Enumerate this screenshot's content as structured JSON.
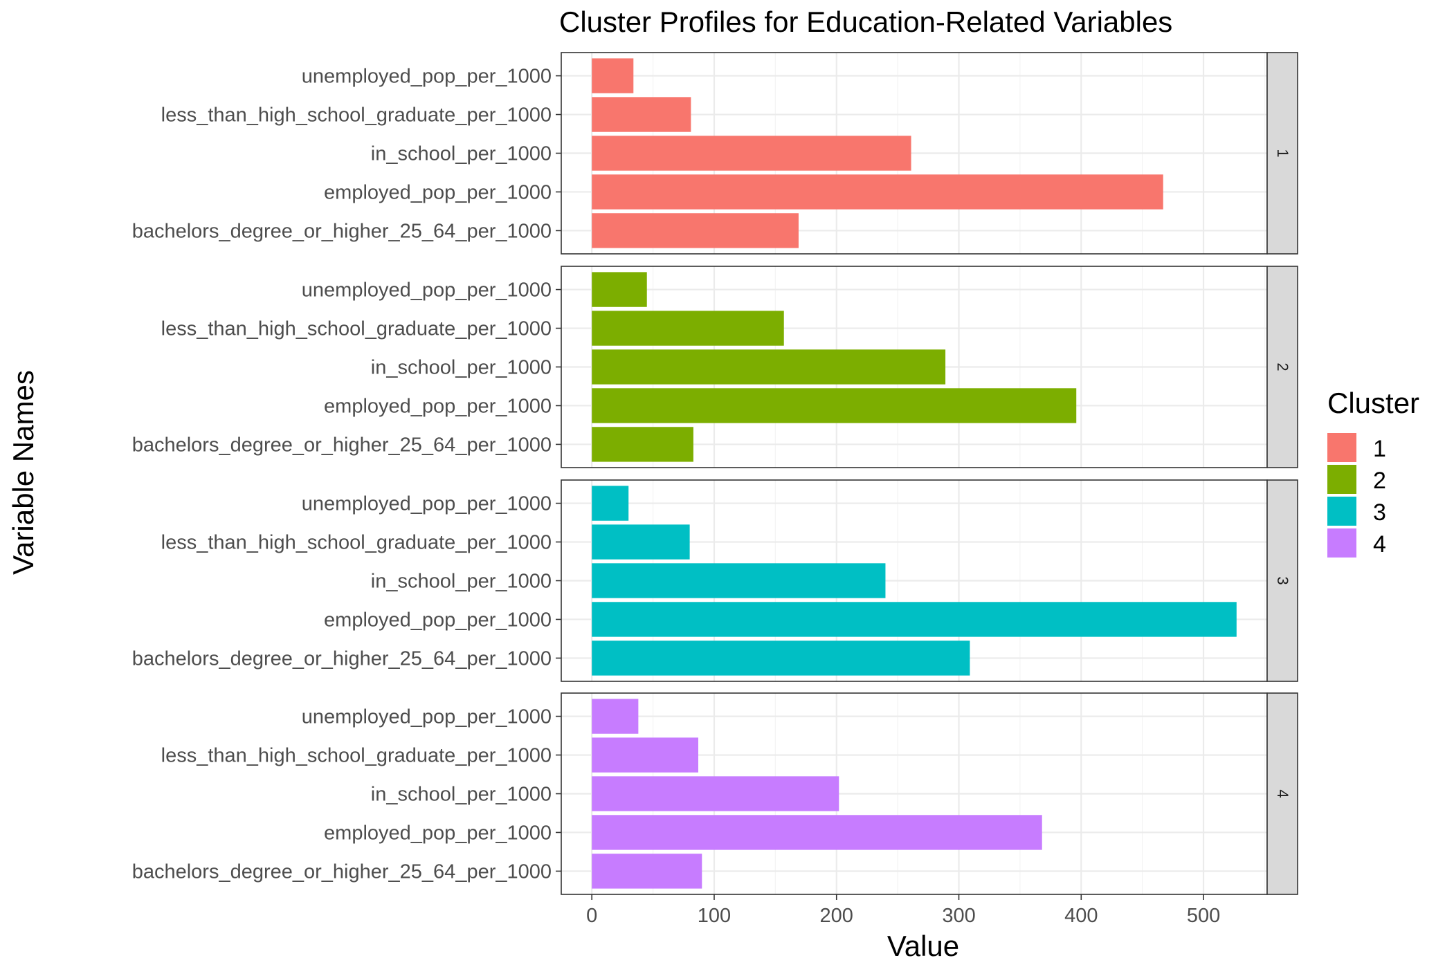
{
  "chart_data": {
    "type": "bar",
    "orientation": "horizontal",
    "facet": "rows",
    "title": "Cluster Profiles for Education-Related Variables",
    "xlabel": "Value",
    "ylabel": "Variable Names",
    "xlim": [
      -25,
      552
    ],
    "x_ticks": [
      0,
      100,
      200,
      300,
      400,
      500
    ],
    "grid": true,
    "legend": {
      "title": "Cluster",
      "placement": "right",
      "entries": [
        "1",
        "2",
        "3",
        "4"
      ]
    },
    "categories": [
      "unemployed_pop_per_1000",
      "less_than_high_school_graduate_per_1000",
      "in_school_per_1000",
      "employed_pop_per_1000",
      "bachelors_degree_or_higher_25_64_per_1000"
    ],
    "series": [
      {
        "name": "1",
        "color": "#F8766D",
        "values": [
          34,
          81,
          261,
          467,
          169
        ]
      },
      {
        "name": "2",
        "color": "#7CAE00",
        "values": [
          45,
          157,
          289,
          396,
          83
        ]
      },
      {
        "name": "3",
        "color": "#00BFC4",
        "values": [
          30,
          80,
          240,
          527,
          309
        ]
      },
      {
        "name": "4",
        "color": "#C77CFF",
        "values": [
          38,
          87,
          202,
          368,
          90
        ]
      }
    ]
  }
}
